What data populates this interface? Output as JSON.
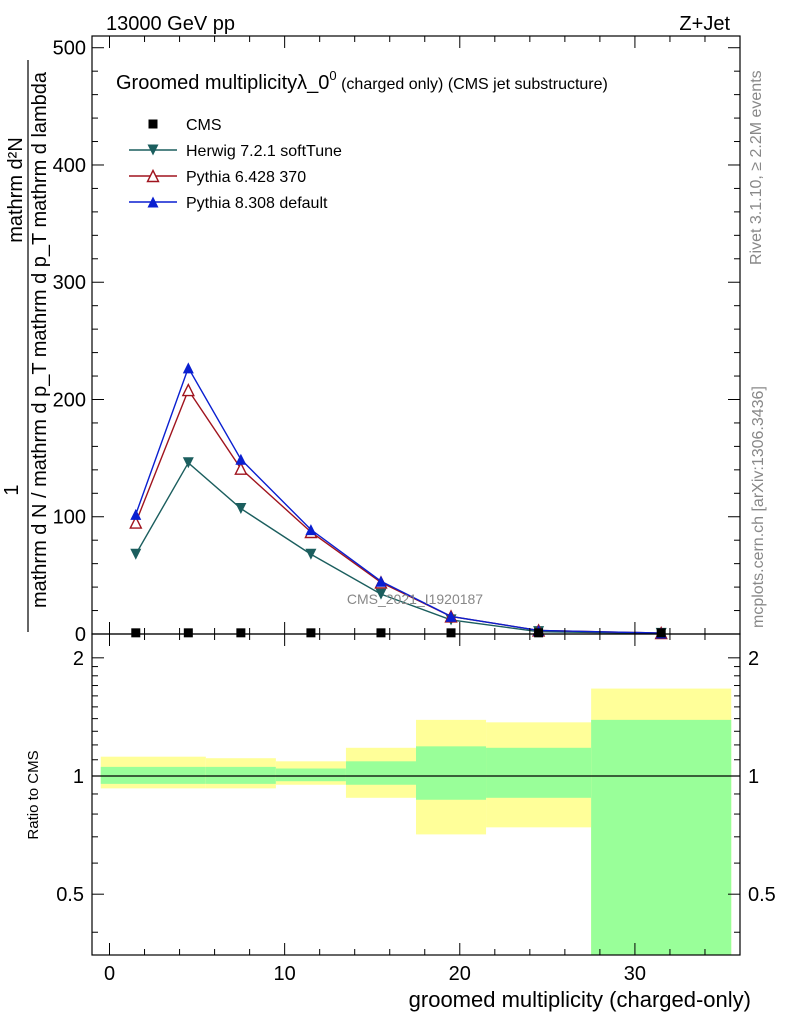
{
  "header": {
    "left": "13000 GeV pp",
    "right": "Z+Jet"
  },
  "title": {
    "main": "Groomed multiplicity",
    "lambda": "λ_0",
    "sup": "0",
    "rest": " (charged only) (CMS jet substructure)"
  },
  "side": {
    "rivet": "Rivet 3.1.10, ≥ 2.2M events",
    "mcplots": "mcplots.cern.ch [arXiv:1306.3436]"
  },
  "watermark": "CMS_2021_I1920187",
  "ylabel": {
    "one": "1",
    "numerator": "mathrm d²N",
    "denominator": "mathrm d N / mathrm d p_T mathrm d p_T mathrm d lambda"
  },
  "ratio_ylabel": "Ratio to CMS",
  "xlabel": "groomed multiplicity (charged-only)",
  "colors": {
    "herwig": "#1b5e5e",
    "pythia6": "#a0141e",
    "pythia8": "#0a1fd0",
    "band_inner": "#99ff99",
    "band_outer": "#ffff99"
  },
  "chart_data": {
    "type": "line",
    "xlim": [
      -1,
      36
    ],
    "ylim": [
      0,
      510
    ],
    "ratio_ylim": [
      0.35,
      2.3
    ],
    "x_ticks": [
      0,
      10,
      20,
      30
    ],
    "y_ticks": [
      0,
      100,
      200,
      300,
      400,
      500
    ],
    "ratio_ticks": [
      0.5,
      1,
      2
    ],
    "x": [
      1.5,
      4.5,
      7.5,
      11.5,
      15.5,
      19.5,
      24.5,
      31.5
    ],
    "bin_edges": [
      -0.5,
      3.5,
      5.5,
      9.5,
      13.5,
      17.5,
      21.5,
      27.5,
      35.5
    ],
    "series": [
      {
        "name": "CMS",
        "marker": "square",
        "values": [
          1,
          1,
          1,
          1,
          1,
          1,
          1,
          1
        ]
      },
      {
        "name": "Herwig 7.2.1 softTune",
        "marker": "triangle-down",
        "values": [
          68,
          146,
          107,
          68,
          34,
          12,
          2,
          0.5
        ]
      },
      {
        "name": "Pythia 6.428 370",
        "marker": "triangle-up-open",
        "values": [
          95,
          208,
          141,
          87,
          44,
          15,
          3,
          0.8
        ]
      },
      {
        "name": "Pythia 8.308 default",
        "marker": "triangle-up",
        "values": [
          102,
          227,
          149,
          89,
          45,
          15,
          3,
          0.8
        ]
      }
    ],
    "ratio_bands": [
      {
        "range": [
          -0.5,
          5.5
        ],
        "inner": [
          0.955,
          1.055
        ],
        "outer": [
          0.93,
          1.12
        ]
      },
      {
        "range": [
          5.5,
          9.5
        ],
        "inner": [
          0.955,
          1.055
        ],
        "outer": [
          0.93,
          1.11
        ]
      },
      {
        "range": [
          9.5,
          13.5
        ],
        "inner": [
          0.97,
          1.045
        ],
        "outer": [
          0.95,
          1.09
        ]
      },
      {
        "range": [
          13.5,
          17.5
        ],
        "inner": [
          0.95,
          1.09
        ],
        "outer": [
          0.88,
          1.18
        ]
      },
      {
        "range": [
          17.5,
          21.5
        ],
        "inner": [
          0.87,
          1.19
        ],
        "outer": [
          0.71,
          1.39
        ]
      },
      {
        "range": [
          21.5,
          27.5
        ],
        "inner": [
          0.88,
          1.18
        ],
        "outer": [
          0.74,
          1.37
        ]
      },
      {
        "range": [
          27.5,
          35.5
        ],
        "inner": [
          0.35,
          1.39
        ],
        "outer": [
          0.35,
          1.67
        ]
      }
    ]
  }
}
